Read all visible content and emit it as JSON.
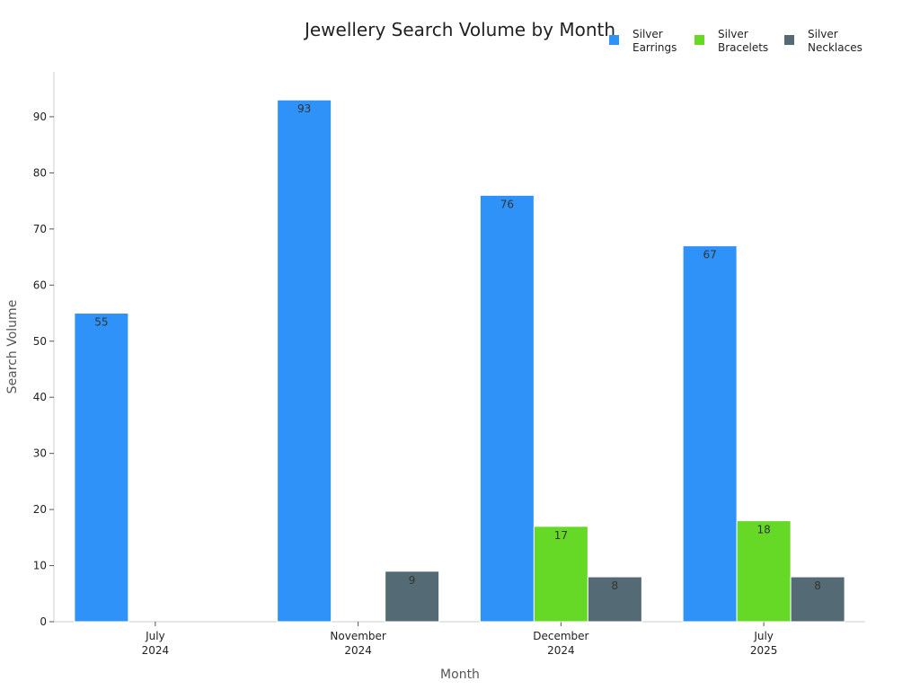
{
  "chart_data": {
    "type": "bar",
    "title": "Jewellery Search Volume by Month",
    "xlabel": "Month",
    "ylabel": "Search Volume",
    "ylim": [
      0,
      98
    ],
    "yticks": [
      0,
      10,
      20,
      30,
      40,
      50,
      60,
      70,
      80,
      90
    ],
    "categories": [
      [
        "July",
        "2024"
      ],
      [
        "November",
        "2024"
      ],
      [
        "December",
        "2024"
      ],
      [
        "July",
        "2025"
      ]
    ],
    "series": [
      {
        "name": [
          "Silver",
          "Earrings"
        ],
        "color": "#2f92f8",
        "values": [
          55,
          93,
          76,
          67
        ]
      },
      {
        "name": [
          "Silver",
          "Bracelets"
        ],
        "color": "#66d927",
        "values": [
          null,
          null,
          17,
          18
        ]
      },
      {
        "name": [
          "Silver",
          "Necklaces"
        ],
        "color": "#546b76",
        "values": [
          null,
          9,
          8,
          8
        ]
      }
    ],
    "legend_position": "top-right",
    "grid": false
  }
}
